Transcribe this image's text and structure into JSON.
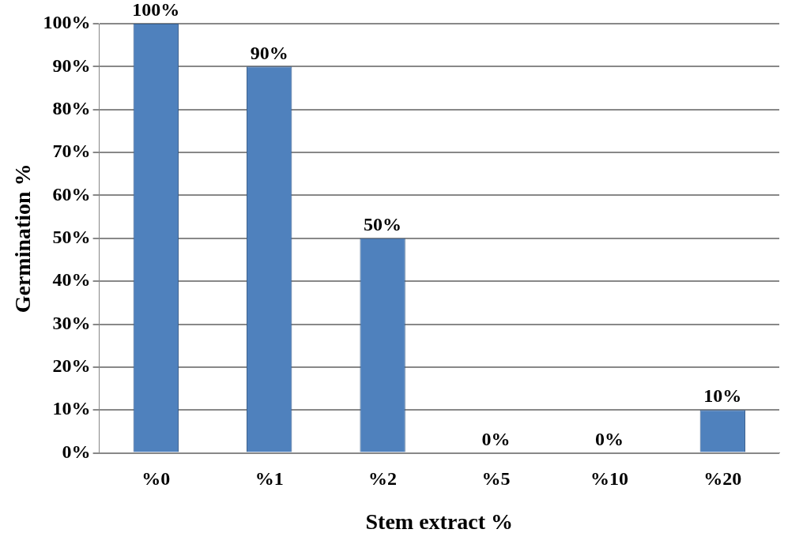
{
  "chart_data": {
    "type": "bar",
    "xlabel": "Stem extract %",
    "ylabel": "Germination %",
    "categories": [
      "%0",
      "%1",
      "%2",
      "%5",
      "%10",
      "%20"
    ],
    "values": [
      100,
      90,
      50,
      0,
      0,
      10
    ],
    "value_labels": [
      "100%",
      "90%",
      "50%",
      "0%",
      "0%",
      "10%"
    ],
    "color": "#4f81bd",
    "ylim": [
      0,
      100
    ],
    "yticks": [
      {
        "value": 0,
        "label": "0%"
      },
      {
        "value": 10,
        "label": "10%"
      },
      {
        "value": 20,
        "label": "20%"
      },
      {
        "value": 30,
        "label": "30%"
      },
      {
        "value": 40,
        "label": "40%"
      },
      {
        "value": 50,
        "label": "50%"
      },
      {
        "value": 60,
        "label": "60%"
      },
      {
        "value": 70,
        "label": "70%"
      },
      {
        "value": 80,
        "label": "80%"
      },
      {
        "value": 90,
        "label": "90%"
      },
      {
        "value": 100,
        "label": "100%"
      }
    ],
    "grid": "y",
    "legend": false
  }
}
